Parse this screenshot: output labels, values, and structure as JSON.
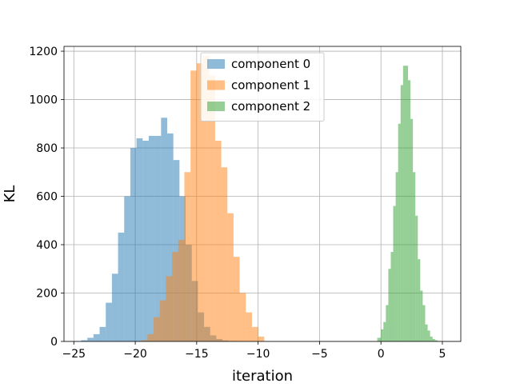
{
  "chart_data": {
    "type": "histogram",
    "title": "",
    "xlabel": "iteration",
    "ylabel": "KL",
    "xlim": [
      -25.8,
      6.5
    ],
    "ylim": [
      0,
      1220
    ],
    "xticks": [
      -25,
      -20,
      -15,
      -10,
      -5,
      0,
      5
    ],
    "yticks": [
      0,
      200,
      400,
      600,
      800,
      1000,
      1200
    ],
    "grid": true,
    "legend_position": "upper-center",
    "series": [
      {
        "name": "component 0",
        "color": "#1f77b4",
        "opacity": 0.5,
        "bin_edges": [
          -24.4,
          -23.9,
          -23.4,
          -22.9,
          -22.4,
          -21.9,
          -21.4,
          -20.9,
          -20.4,
          -19.9,
          -19.4,
          -18.9,
          -18.4,
          -17.9,
          -17.4,
          -16.9,
          -16.4,
          -15.9,
          -15.4,
          -14.9,
          -14.4,
          -13.9,
          -13.4,
          -12.9,
          -12.4,
          -11.9,
          -11.4
        ],
        "counts": [
          5,
          15,
          30,
          60,
          160,
          280,
          450,
          600,
          800,
          840,
          830,
          850,
          850,
          925,
          860,
          750,
          600,
          400,
          250,
          120,
          60,
          25,
          10,
          4,
          2,
          1
        ]
      },
      {
        "name": "component 1",
        "color": "#ff7f0e",
        "opacity": 0.5,
        "bin_edges": [
          -19.5,
          -19.0,
          -18.5,
          -18.0,
          -17.5,
          -17.0,
          -16.5,
          -16.0,
          -15.5,
          -15.0,
          -14.5,
          -14.0,
          -13.5,
          -13.0,
          -12.5,
          -12.0,
          -11.5,
          -11.0,
          -10.5,
          -10.0,
          -9.5
        ],
        "counts": [
          5,
          30,
          100,
          170,
          270,
          370,
          420,
          700,
          1120,
          1150,
          1180,
          1100,
          830,
          720,
          530,
          350,
          200,
          120,
          60,
          20
        ]
      },
      {
        "name": "component 2",
        "color": "#2ca02c",
        "opacity": 0.5,
        "bin_edges": [
          -0.3,
          0.0,
          0.2,
          0.4,
          0.6,
          0.8,
          1.0,
          1.2,
          1.4,
          1.6,
          1.8,
          2.0,
          2.2,
          2.4,
          2.6,
          2.8,
          3.0,
          3.2,
          3.4,
          3.6,
          3.8,
          4.0,
          4.2,
          4.4,
          4.6,
          4.8
        ],
        "counts": [
          15,
          50,
          80,
          150,
          300,
          370,
          560,
          700,
          900,
          1060,
          1140,
          1140,
          1080,
          920,
          700,
          520,
          340,
          210,
          150,
          70,
          45,
          20,
          10,
          5,
          2
        ]
      }
    ]
  }
}
